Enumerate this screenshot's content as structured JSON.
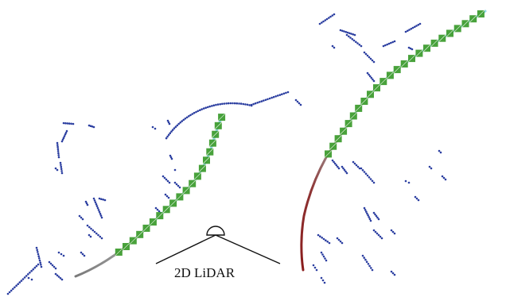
{
  "sensor": {
    "label": "2D LiDAR",
    "icon": "lidar-sensor-icon"
  },
  "colors": {
    "background": "#ffffff",
    "scan_points": "#2b3ea0",
    "trajectory_start": "#8f8f8f",
    "trajectory_end": "#8fd8e8",
    "trajectory_left_start": "#7a7a7a",
    "trajectory_right_start": "#8a1c1c",
    "pose_marker": "#3a9a2a",
    "sensor_lines": "#111111"
  }
}
